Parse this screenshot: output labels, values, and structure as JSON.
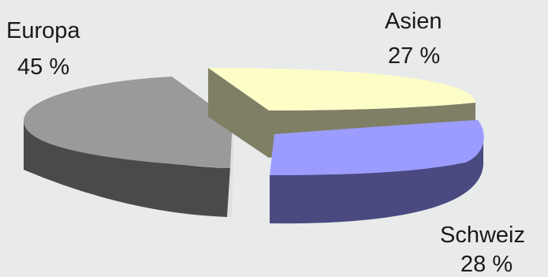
{
  "chart_data": {
    "type": "pie",
    "title": "",
    "three_d": true,
    "exploded": true,
    "slices": [
      {
        "label": "Europa",
        "value": 45,
        "value_label": "45 %",
        "top_color": "#9a9a9a",
        "side_color": "#4a4a4a"
      },
      {
        "label": "Asien",
        "value": 27,
        "value_label": "27 %",
        "top_color": "#fdfdc8",
        "side_color": "#7f7f66"
      },
      {
        "label": "Schweiz",
        "value": 28,
        "value_label": "28 %",
        "top_color": "#9c9cff",
        "side_color": "#4a4a80"
      }
    ]
  }
}
